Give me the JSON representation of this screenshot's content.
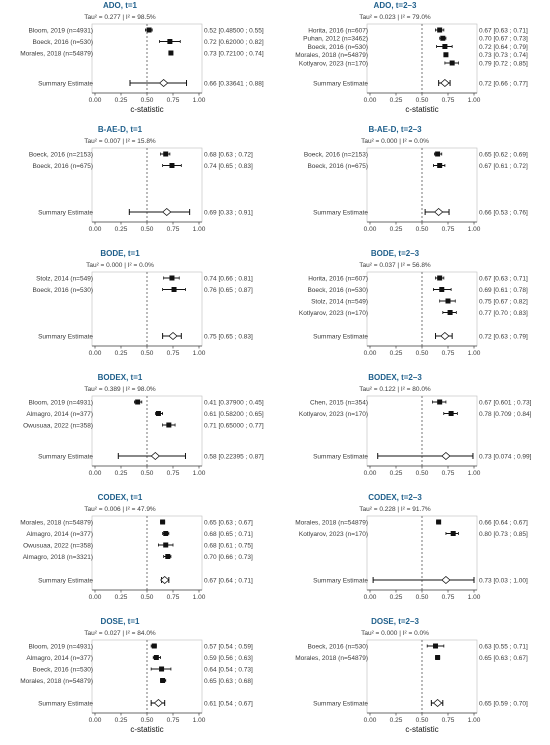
{
  "chart_data": [
    {
      "type": "forest",
      "title": "ADO, t=1",
      "stats": "Tau² = 0.277  |  I² = 98.5%",
      "xlabel": "c-statistic",
      "xlim": [
        0.0,
        1.0
      ],
      "xticks": [
        "0.00",
        "0.25",
        "0.50",
        "0.75",
        "1.00"
      ],
      "studies": [
        {
          "label": "Bloom, 2019  (n=4931)",
          "est": 0.52,
          "lo": 0.485,
          "hi": 0.55,
          "ci_text": "0.52 [0.48500 ; 0.55]"
        },
        {
          "label": "Boeck, 2016  (n=530)",
          "est": 0.72,
          "lo": 0.62,
          "hi": 0.82,
          "ci_text": "0.72 [0.62000 ; 0.82]"
        },
        {
          "label": "Morales, 2018  (n=54879)",
          "est": 0.73,
          "lo": 0.721,
          "hi": 0.74,
          "ci_text": "0.73 [0.72100 ; 0.74]"
        }
      ],
      "summary": {
        "label": "Summary Estimate",
        "est": 0.66,
        "lo": 0.33641,
        "hi": 0.88,
        "ci_text": "0.66 [0.33641 ; 0.88]"
      }
    },
    {
      "type": "forest",
      "title": "ADO, t=2–3",
      "stats": "Tau² = 0.023  |  I² = 79.0%",
      "xlabel": "c-statistic",
      "xlim": [
        0.0,
        1.0
      ],
      "xticks": [
        "0.00",
        "0.25",
        "0.50",
        "0.75",
        "1.00"
      ],
      "studies": [
        {
          "label": "Horita, 2016  (n=607)",
          "est": 0.67,
          "lo": 0.63,
          "hi": 0.71,
          "ci_text": "0.67 [0.63 ; 0.71]"
        },
        {
          "label": "Puhan, 2012  (n=3462)",
          "est": 0.7,
          "lo": 0.67,
          "hi": 0.73,
          "ci_text": "0.70 [0.67 ; 0.73]"
        },
        {
          "label": "Boeck, 2016  (n=530)",
          "est": 0.72,
          "lo": 0.64,
          "hi": 0.79,
          "ci_text": "0.72 [0.64 ; 0.79]"
        },
        {
          "label": "Morales, 2018  (n=54879)",
          "est": 0.73,
          "lo": 0.73,
          "hi": 0.74,
          "ci_text": "0.73 [0.73 ; 0.74]"
        },
        {
          "label": "Kotlyarov, 2023  (n=170)",
          "est": 0.79,
          "lo": 0.72,
          "hi": 0.85,
          "ci_text": "0.79 [0.72 ; 0.85]"
        }
      ],
      "summary": {
        "label": "Summary Estimate",
        "est": 0.72,
        "lo": 0.66,
        "hi": 0.77,
        "ci_text": "0.72 [0.66 ; 0.77]"
      }
    },
    {
      "type": "forest",
      "title": "B-AE-D, t=1",
      "stats": "Tau² = 0.007  |  I² = 15.8%",
      "xlabel": "",
      "xlim": [
        0.0,
        1.0
      ],
      "xticks": [
        "0.00",
        "0.25",
        "0.50",
        "0.75",
        "1.00"
      ],
      "studies": [
        {
          "label": "Boeck, 2016  (n=2153)",
          "est": 0.68,
          "lo": 0.63,
          "hi": 0.72,
          "ci_text": "0.68 [0.63 ; 0.72]"
        },
        {
          "label": "Boeck, 2016  (n=675)",
          "est": 0.74,
          "lo": 0.65,
          "hi": 0.83,
          "ci_text": "0.74 [0.65 ; 0.83]"
        }
      ],
      "summary": {
        "label": "Summary Estimate",
        "est": 0.69,
        "lo": 0.33,
        "hi": 0.91,
        "ci_text": "0.69 [0.33 ; 0.91]"
      }
    },
    {
      "type": "forest",
      "title": "B-AE-D, t=2–3",
      "stats": "Tau² = 0.000  |  I² = 0.0%",
      "xlabel": "",
      "xlim": [
        0.0,
        1.0
      ],
      "xticks": [
        "0.00",
        "0.25",
        "0.50",
        "0.75",
        "1.00"
      ],
      "studies": [
        {
          "label": "Boeck, 2016  (n=2153)",
          "est": 0.65,
          "lo": 0.62,
          "hi": 0.69,
          "ci_text": "0.65 [0.62 ; 0.69]"
        },
        {
          "label": "Boeck, 2016  (n=675)",
          "est": 0.67,
          "lo": 0.61,
          "hi": 0.72,
          "ci_text": "0.67 [0.61 ; 0.72]"
        }
      ],
      "summary": {
        "label": "Summary Estimate",
        "est": 0.66,
        "lo": 0.53,
        "hi": 0.76,
        "ci_text": "0.66 [0.53 ; 0.76]"
      }
    },
    {
      "type": "forest",
      "title": "BODE, t=1",
      "stats": "Tau² = 0.000  |  I² = 0.0%",
      "xlabel": "",
      "xlim": [
        0.0,
        1.0
      ],
      "xticks": [
        "0.00",
        "0.25",
        "0.50",
        "0.75",
        "1.00"
      ],
      "studies": [
        {
          "label": "Stolz, 2014  (n=549)",
          "est": 0.74,
          "lo": 0.66,
          "hi": 0.81,
          "ci_text": "0.74 [0.66 ; 0.81]"
        },
        {
          "label": "Boeck, 2016  (n=530)",
          "est": 0.76,
          "lo": 0.65,
          "hi": 0.87,
          "ci_text": "0.76 [0.65 ; 0.87]"
        }
      ],
      "summary": {
        "label": "Summary Estimate",
        "est": 0.75,
        "lo": 0.65,
        "hi": 0.83,
        "ci_text": "0.75 [0.65 ; 0.83]"
      }
    },
    {
      "type": "forest",
      "title": "BODE, t=2–3",
      "stats": "Tau² = 0.037  |  I² = 56.8%",
      "xlabel": "",
      "xlim": [
        0.0,
        1.0
      ],
      "xticks": [
        "0.00",
        "0.25",
        "0.50",
        "0.75",
        "1.00"
      ],
      "studies": [
        {
          "label": "Horita, 2016  (n=607)",
          "est": 0.67,
          "lo": 0.63,
          "hi": 0.71,
          "ci_text": "0.67 [0.63 ; 0.71]"
        },
        {
          "label": "Boeck, 2016  (n=530)",
          "est": 0.69,
          "lo": 0.61,
          "hi": 0.78,
          "ci_text": "0.69 [0.61 ; 0.78]"
        },
        {
          "label": "Stolz, 2014  (n=549)",
          "est": 0.75,
          "lo": 0.67,
          "hi": 0.82,
          "ci_text": "0.75 [0.67 ; 0.82]"
        },
        {
          "label": "Kotlyarov, 2023  (n=170)",
          "est": 0.77,
          "lo": 0.7,
          "hi": 0.83,
          "ci_text": "0.77 [0.70 ; 0.83]"
        }
      ],
      "summary": {
        "label": "Summary Estimate",
        "est": 0.72,
        "lo": 0.63,
        "hi": 0.79,
        "ci_text": "0.72 [0.63 ; 0.79]"
      }
    },
    {
      "type": "forest",
      "title": "BODEX, t=1",
      "stats": "Tau² = 0.389  |  I² = 98.0%",
      "xlabel": "",
      "xlim": [
        0.0,
        1.0
      ],
      "xticks": [
        "0.00",
        "0.25",
        "0.50",
        "0.75",
        "1.00"
      ],
      "studies": [
        {
          "label": "Bloom, 2019  (n=4931)",
          "est": 0.41,
          "lo": 0.379,
          "hi": 0.45,
          "ci_text": "0.41 [0.37900 ; 0.45]"
        },
        {
          "label": "Almagro, 2014  (n=377)",
          "est": 0.61,
          "lo": 0.582,
          "hi": 0.65,
          "ci_text": "0.61 [0.58200 ; 0.65]"
        },
        {
          "label": "Owusuaa, 2022  (n=358)",
          "est": 0.71,
          "lo": 0.65,
          "hi": 0.77,
          "ci_text": "0.71 [0.65000 ; 0.77]"
        }
      ],
      "summary": {
        "label": "Summary Estimate",
        "est": 0.58,
        "lo": 0.22395,
        "hi": 0.87,
        "ci_text": "0.58 [0.22395 ; 0.87]"
      }
    },
    {
      "type": "forest",
      "title": "BODEX, t=2–3",
      "stats": "Tau² = 0.122  |  I² = 80.0%",
      "xlabel": "",
      "xlim": [
        0.0,
        1.0
      ],
      "xticks": [
        "0.00",
        "0.25",
        "0.50",
        "0.75",
        "1.00"
      ],
      "studies": [
        {
          "label": "Chen, 2015  (n=354)",
          "est": 0.67,
          "lo": 0.601,
          "hi": 0.73,
          "ci_text": "0.67 [0.601 ; 0.73]"
        },
        {
          "label": "Kotlyarov, 2023  (n=170)",
          "est": 0.78,
          "lo": 0.709,
          "hi": 0.84,
          "ci_text": "0.78 [0.709 ; 0.84]"
        }
      ],
      "summary": {
        "label": "Summary Estimate",
        "est": 0.73,
        "lo": 0.074,
        "hi": 0.99,
        "ci_text": "0.73 [0.074 ; 0.99]"
      }
    },
    {
      "type": "forest",
      "title": "CODEX, t=1",
      "stats": "Tau² = 0.006  |  I² = 47.9%",
      "xlabel": "",
      "xlim": [
        0.0,
        1.0
      ],
      "xticks": [
        "0.00",
        "0.25",
        "0.50",
        "0.75",
        "1.00"
      ],
      "studies": [
        {
          "label": "Morales, 2018  (n=54879)",
          "est": 0.65,
          "lo": 0.63,
          "hi": 0.67,
          "ci_text": "0.65 [0.63 ; 0.67]"
        },
        {
          "label": "Almagro, 2014  (n=377)",
          "est": 0.68,
          "lo": 0.65,
          "hi": 0.71,
          "ci_text": "0.68 [0.65 ; 0.71]"
        },
        {
          "label": "Owusuaa, 2022  (n=358)",
          "est": 0.68,
          "lo": 0.61,
          "hi": 0.75,
          "ci_text": "0.68 [0.61 ; 0.75]"
        },
        {
          "label": "Almagro, 2018  (n=3321)",
          "est": 0.7,
          "lo": 0.66,
          "hi": 0.73,
          "ci_text": "0.70 [0.66 ; 0.73]"
        }
      ],
      "summary": {
        "label": "Summary Estimate",
        "est": 0.67,
        "lo": 0.64,
        "hi": 0.71,
        "ci_text": "0.67 [0.64 ; 0.71]"
      }
    },
    {
      "type": "forest",
      "title": "CODEX, t=2–3",
      "stats": "Tau² = 0.228  |  I² = 91.7%",
      "xlabel": "",
      "xlim": [
        0.0,
        1.0
      ],
      "xticks": [
        "0.00",
        "0.25",
        "0.50",
        "0.75",
        "1.00"
      ],
      "studies": [
        {
          "label": "Morales, 2018  (n=54879)",
          "est": 0.66,
          "lo": 0.64,
          "hi": 0.67,
          "ci_text": "0.66 [0.64 ; 0.67]"
        },
        {
          "label": "Kotlyarov, 2023  (n=170)",
          "est": 0.8,
          "lo": 0.73,
          "hi": 0.85,
          "ci_text": "0.80 [0.73 ; 0.85]"
        }
      ],
      "summary": {
        "label": "Summary Estimate",
        "est": 0.73,
        "lo": 0.03,
        "hi": 1.0,
        "ci_text": "0.73 [0.03 ; 1.00]"
      }
    },
    {
      "type": "forest",
      "title": "DOSE, t=1",
      "stats": "Tau² = 0.027  |  I² = 84.0%",
      "xlabel": "c-statistic",
      "xlim": [
        0.0,
        1.0
      ],
      "xticks": [
        "0.00",
        "0.25",
        "0.50",
        "0.75",
        "1.00"
      ],
      "studies": [
        {
          "label": "Bloom, 2019  (n=4931)",
          "est": 0.57,
          "lo": 0.54,
          "hi": 0.59,
          "ci_text": "0.57 [0.54 ; 0.59]"
        },
        {
          "label": "Almagro, 2014  (n=377)",
          "est": 0.59,
          "lo": 0.56,
          "hi": 0.63,
          "ci_text": "0.59 [0.56 ; 0.63]"
        },
        {
          "label": "Boeck, 2016  (n=530)",
          "est": 0.64,
          "lo": 0.54,
          "hi": 0.73,
          "ci_text": "0.64 [0.54 ; 0.73]"
        },
        {
          "label": "Morales, 2018  (n=54879)",
          "est": 0.65,
          "lo": 0.63,
          "hi": 0.68,
          "ci_text": "0.65 [0.63 ; 0.68]"
        }
      ],
      "summary": {
        "label": "Summary Estimate",
        "est": 0.61,
        "lo": 0.54,
        "hi": 0.67,
        "ci_text": "0.61 [0.54 ; 0.67]"
      }
    },
    {
      "type": "forest",
      "title": "DOSE, t=2–3",
      "stats": "Tau² = 0.000  |  I² = 0.0%",
      "xlabel": "c-statistic",
      "xlim": [
        0.0,
        1.0
      ],
      "xticks": [
        "0.00",
        "0.25",
        "0.50",
        "0.75",
        "1.00"
      ],
      "studies": [
        {
          "label": "Boeck, 2016  (n=530)",
          "est": 0.63,
          "lo": 0.55,
          "hi": 0.71,
          "ci_text": "0.63 [0.55 ; 0.71]"
        },
        {
          "label": "Morales, 2018  (n=54879)",
          "est": 0.65,
          "lo": 0.63,
          "hi": 0.67,
          "ci_text": "0.65 [0.63 ; 0.67]"
        }
      ],
      "summary": {
        "label": "Summary Estimate",
        "est": 0.65,
        "lo": 0.59,
        "hi": 0.7,
        "ci_text": "0.65 [0.59 ; 0.70]"
      }
    }
  ],
  "colors": {
    "title": "#1f5f8b",
    "text": "#3a3a3a",
    "marks": "#111111",
    "axis": "#444444",
    "null_line": "#555555"
  }
}
